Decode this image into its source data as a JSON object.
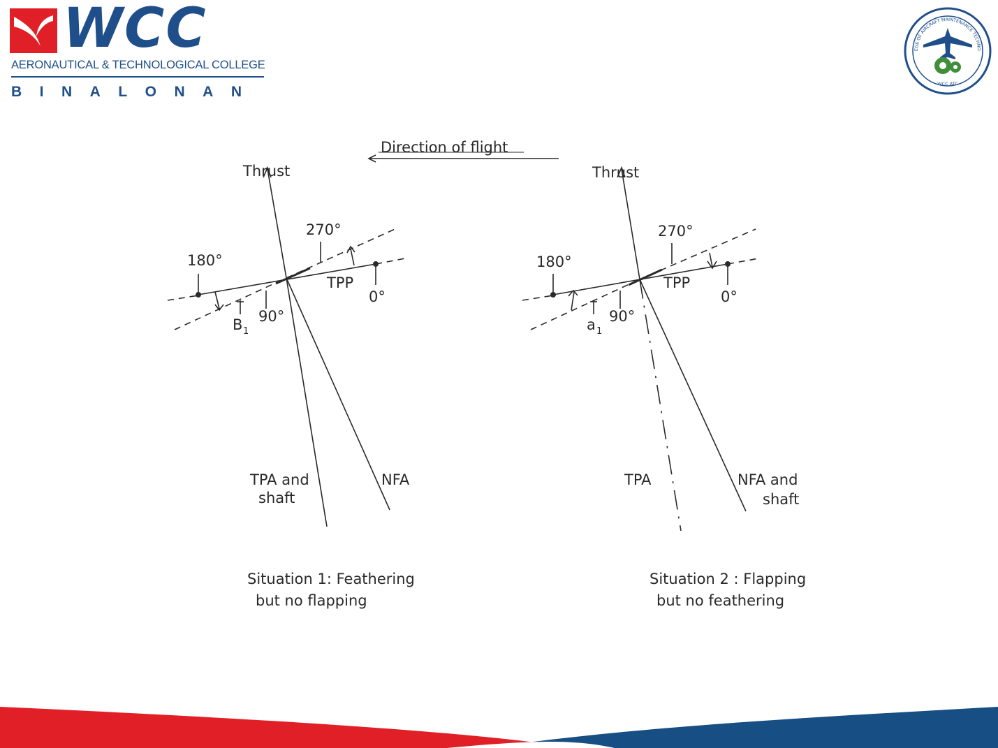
{
  "header": {
    "logo_wordmark": "WCC",
    "college_name": "AERONAUTICAL & TECHNOLOGICAL COLLEGE",
    "campus": "BINALONAN",
    "seal_text": "COLLEGE OF AIRCRAFT MAINTENANCE TECHNOLOGY",
    "seal_bottom_text": "WCC ATC"
  },
  "diagram": {
    "direction_label": "Direction of flight",
    "situation_1": {
      "thrust": "Thrust",
      "deg_270": "270°",
      "deg_180": "180°",
      "deg_90": "90°",
      "deg_0": "0°",
      "tpp": "TPP",
      "angle_label": "B",
      "angle_sub": "1",
      "tpa_line1": "TPA and",
      "tpa_line2": "shaft",
      "nfa": "NFA",
      "caption_line1": "Situation 1:  Feathering",
      "caption_line2": "but  no  flapping"
    },
    "situation_2": {
      "thrust": "Thrust",
      "deg_270": "270°",
      "deg_180": "180°",
      "deg_90": "90°",
      "deg_0": "0°",
      "tpp": "TPP",
      "angle_label": "a",
      "angle_sub": "1",
      "tpa": "TPA",
      "nfa_line1": "NFA  and",
      "nfa_line2": "shaft",
      "caption_line1": "Situation 2 : Flapping",
      "caption_line2": "but  no  feathering"
    }
  },
  "colors": {
    "brand_blue": "#1f4f8a",
    "brand_red": "#e02026",
    "band_blue": "#174e84",
    "seal_green": "#3f8f3a",
    "ink": "#2a2a2a"
  }
}
